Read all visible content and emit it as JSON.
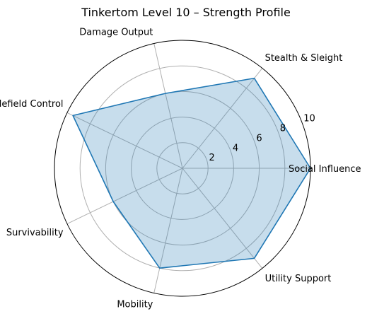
{
  "chart_data": {
    "type": "radar",
    "title": "Tinkertom Level 10 – Strength Profile",
    "categories": [
      "Social Influence",
      "Stealth & Sleight",
      "Damage Output",
      "Battlefield Control",
      "Survivability",
      "Mobility",
      "Utility Support"
    ],
    "series": [
      {
        "values": [
          10,
          9,
          6,
          9.5,
          6,
          8,
          9
        ]
      }
    ],
    "rlim": [
      0,
      10
    ],
    "r_ticks": [
      2,
      4,
      6,
      8,
      10
    ],
    "grid": true,
    "colors": {
      "line": "#1f77b4",
      "fill": "#1f77b4",
      "grid": "#b0b0b0",
      "frame": "#000000"
    }
  }
}
